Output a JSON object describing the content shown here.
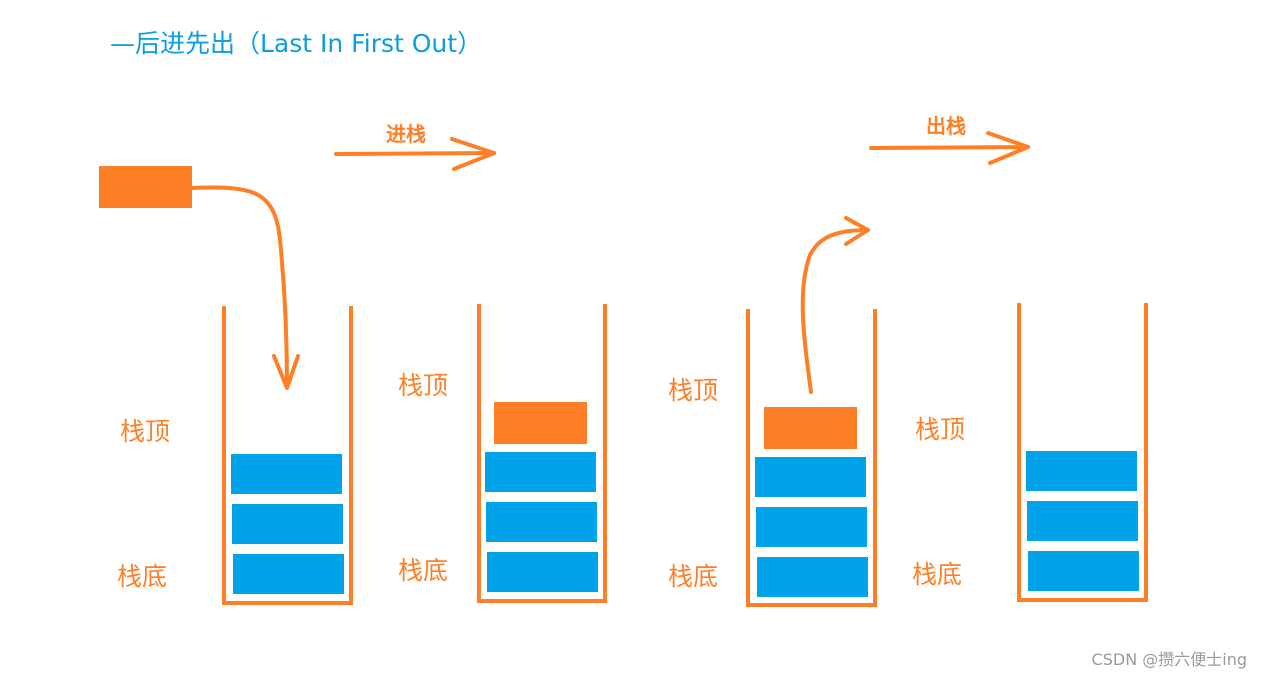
{
  "title": "—后进先出（Last In First Out）",
  "arrows": {
    "push_label": "进栈",
    "pop_label": "出栈"
  },
  "stacks": [
    {
      "top_label": "栈顶",
      "bottom_label": "栈底"
    },
    {
      "top_label": "栈顶",
      "bottom_label": "栈底"
    },
    {
      "top_label": "栈顶",
      "bottom_label": "栈底"
    },
    {
      "top_label": "栈顶",
      "bottom_label": "栈底"
    }
  ],
  "watermark": "CSDN @攒六便士ing",
  "colors": {
    "orange": "#ff7f27",
    "blue": "#00a2e8",
    "title_blue": "#0b9ddd"
  }
}
